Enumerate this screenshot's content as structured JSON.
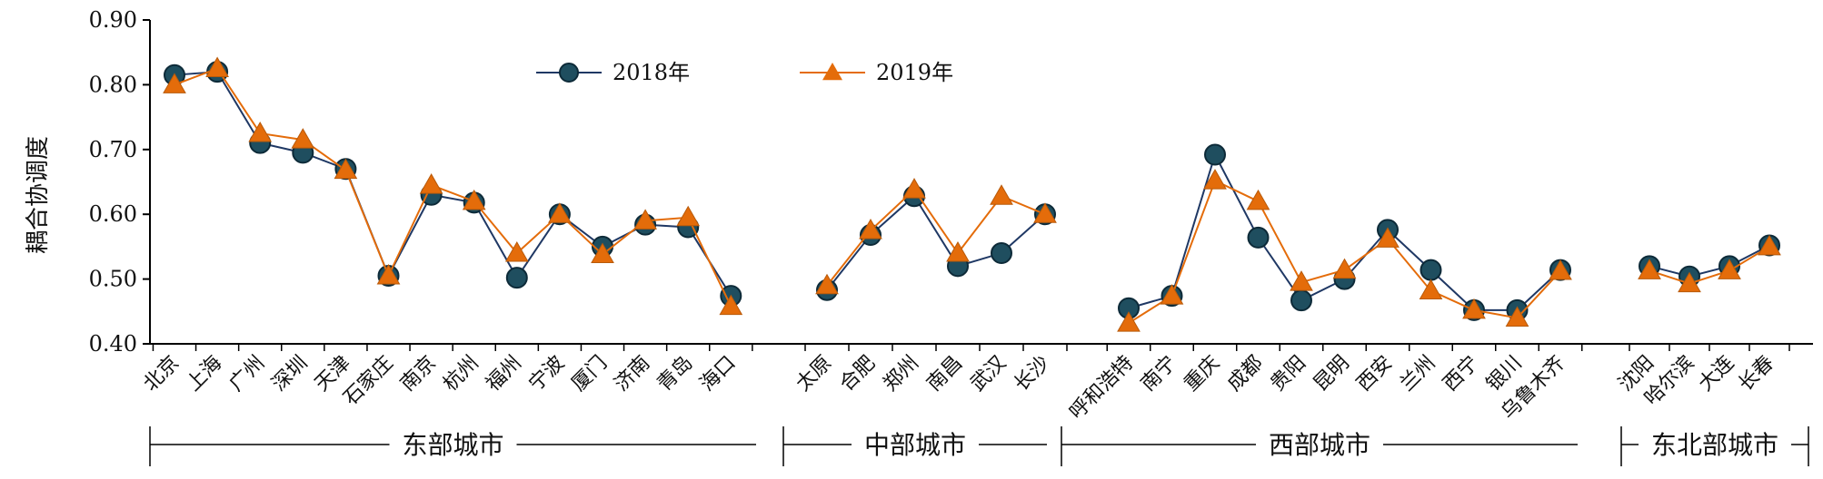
{
  "chart_data": {
    "type": "line",
    "ylabel": "耦合协调度",
    "ylim": [
      0.4,
      0.9
    ],
    "yticks": [
      "0.40",
      "0.50",
      "0.60",
      "0.70",
      "0.80",
      "0.90"
    ],
    "legend_position": "top-center",
    "groups": [
      {
        "name": "东部城市",
        "categories": [
          "北京",
          "上海",
          "广州",
          "深圳",
          "天津",
          "石家庄",
          "南京",
          "杭州",
          "福州",
          "宁波",
          "厦门",
          "济南",
          "青岛",
          "海口"
        ]
      },
      {
        "name": "中部城市",
        "categories": [
          "太原",
          "合肥",
          "郑州",
          "南昌",
          "武汉",
          "长沙"
        ]
      },
      {
        "name": "西部城市",
        "categories": [
          "呼和浩特",
          "南宁",
          "重庆",
          "成都",
          "贵阳",
          "昆明",
          "西安",
          "兰州",
          "西宁",
          "银川",
          "乌鲁木齐"
        ]
      },
      {
        "name": "东北部城市",
        "categories": [
          "沈阳",
          "哈尔滨",
          "大连",
          "长春"
        ]
      }
    ],
    "series": [
      {
        "name": "2018年",
        "color": "#1f4e5f",
        "line_color": "#1f3864",
        "marker": "circle",
        "values": [
          [
            0.815,
            0.82,
            0.71,
            0.695,
            0.67,
            0.505,
            0.63,
            0.618,
            0.502,
            0.6,
            0.55,
            0.584,
            0.58,
            0.474
          ],
          [
            0.483,
            0.568,
            0.628,
            0.52,
            0.54,
            0.6
          ],
          [
            0.455,
            0.474,
            0.692,
            0.564,
            0.467,
            0.5,
            0.576,
            0.514,
            0.452,
            0.452,
            0.514
          ],
          [
            0.52,
            0.504,
            0.52,
            0.552
          ]
        ]
      },
      {
        "name": "2019年",
        "color": "#e46c0a",
        "line_color": "#e46c0a",
        "marker": "triangle",
        "values": [
          [
            0.8,
            0.825,
            0.725,
            0.715,
            0.668,
            0.505,
            0.645,
            0.62,
            0.54,
            0.6,
            0.538,
            0.59,
            0.595,
            0.458
          ],
          [
            0.49,
            0.575,
            0.638,
            0.54,
            0.628,
            0.6
          ],
          [
            0.432,
            0.474,
            0.652,
            0.62,
            0.495,
            0.514,
            0.562,
            0.482,
            0.452,
            0.44,
            0.512
          ],
          [
            0.513,
            0.493,
            0.513,
            0.55
          ]
        ]
      }
    ]
  }
}
